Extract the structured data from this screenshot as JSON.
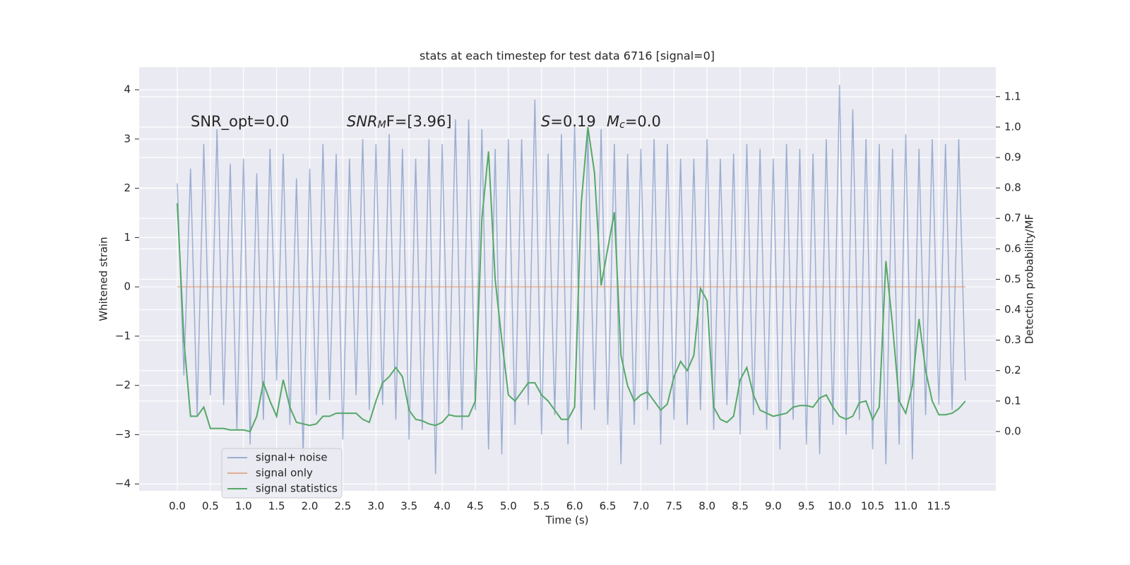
{
  "chart_data": {
    "type": "line",
    "title": "stats at each timestep for test data 6716 [signal=0]",
    "xlabel": "Time (s)",
    "ylabel": "Whitened strain",
    "y2label": "Detection probability/MF",
    "annotations": [
      [
        "SNR_opt=0.0"
      ],
      [
        "SNR",
        "M",
        "F=[3.96]"
      ],
      [
        "S",
        "",
        "=0.19"
      ],
      [
        "M",
        "c",
        "=0.0"
      ]
    ],
    "x": [
      0.0,
      0.1,
      0.2,
      0.3,
      0.4,
      0.5,
      0.6,
      0.7,
      0.8,
      0.9,
      1.0,
      1.1,
      1.2,
      1.3,
      1.4,
      1.5,
      1.6,
      1.7,
      1.8,
      1.9,
      2.0,
      2.1,
      2.2,
      2.3,
      2.4,
      2.5,
      2.6,
      2.7,
      2.8,
      2.9,
      3.0,
      3.1,
      3.2,
      3.3,
      3.4,
      3.5,
      3.6,
      3.7,
      3.8,
      3.9,
      4.0,
      4.1,
      4.2,
      4.3,
      4.4,
      4.5,
      4.6,
      4.7,
      4.8,
      4.9,
      5.0,
      5.1,
      5.2,
      5.3,
      5.4,
      5.5,
      5.6,
      5.7,
      5.8,
      5.9,
      6.0,
      6.1,
      6.2,
      6.3,
      6.4,
      6.5,
      6.6,
      6.7,
      6.8,
      6.9,
      7.0,
      7.1,
      7.2,
      7.3,
      7.4,
      7.5,
      7.6,
      7.7,
      7.8,
      7.9,
      8.0,
      8.1,
      8.2,
      8.3,
      8.4,
      8.5,
      8.6,
      8.7,
      8.8,
      8.9,
      9.0,
      9.1,
      9.2,
      9.3,
      9.4,
      9.5,
      9.6,
      9.7,
      9.8,
      9.9,
      10.0,
      10.1,
      10.2,
      10.3,
      10.4,
      10.5,
      10.6,
      10.7,
      10.8,
      10.9,
      11.0,
      11.1,
      11.2,
      11.3,
      11.4,
      11.5,
      11.6,
      11.7,
      11.8,
      11.9
    ],
    "series": [
      {
        "name": "signal+ noise",
        "color": "#4c72b0",
        "opacity": 0.5,
        "axis": "y",
        "values": [
          2.1,
          -1.8,
          2.4,
          -2.6,
          2.9,
          -2.2,
          3.2,
          -2.4,
          2.5,
          -2.9,
          2.6,
          -3.2,
          2.3,
          -2.7,
          2.8,
          -1.9,
          2.7,
          -2.8,
          2.2,
          -3.4,
          2.4,
          -2.6,
          2.9,
          -2.3,
          2.7,
          -3.1,
          2.6,
          -2.2,
          3.0,
          -2.5,
          2.9,
          -2.4,
          3.1,
          -2.7,
          2.8,
          -3.1,
          2.6,
          -2.9,
          3.0,
          -3.8,
          2.9,
          -2.6,
          3.4,
          -2.9,
          3.4,
          -2.5,
          3.2,
          -3.3,
          2.8,
          -3.4,
          3.0,
          -2.8,
          3.0,
          -2.4,
          3.8,
          -3.0,
          2.7,
          -2.6,
          3.1,
          -3.2,
          3.3,
          -2.9,
          3.1,
          -2.5,
          3.2,
          -2.8,
          2.9,
          -3.6,
          2.7,
          -2.8,
          2.8,
          -2.5,
          3.0,
          -3.2,
          2.9,
          -2.7,
          2.6,
          -2.8,
          2.6,
          -2.5,
          3.0,
          -2.9,
          2.6,
          -2.4,
          2.7,
          -3.0,
          2.9,
          -2.6,
          2.8,
          -2.9,
          2.6,
          -3.3,
          2.9,
          -2.7,
          2.8,
          -3.2,
          2.7,
          -3.4,
          3.0,
          -2.8,
          4.1,
          -3.0,
          3.6,
          -2.7,
          3.0,
          -3.3,
          2.9,
          -3.6,
          2.8,
          -3.2,
          3.1,
          -3.5,
          2.8,
          -2.6,
          3.0,
          -2.4,
          2.9,
          -2.5,
          3.0,
          -1.9
        ]
      },
      {
        "name": "signal only",
        "color": "#dd8452",
        "opacity": 0.6,
        "axis": "y",
        "values": [
          0,
          0,
          0,
          0,
          0,
          0,
          0,
          0,
          0,
          0,
          0,
          0,
          0,
          0,
          0,
          0,
          0,
          0,
          0,
          0,
          0,
          0,
          0,
          0,
          0,
          0,
          0,
          0,
          0,
          0,
          0,
          0,
          0,
          0,
          0,
          0,
          0,
          0,
          0,
          0,
          0,
          0,
          0,
          0,
          0,
          0,
          0,
          0,
          0,
          0,
          0,
          0,
          0,
          0,
          0,
          0,
          0,
          0,
          0,
          0,
          0,
          0,
          0,
          0,
          0,
          0,
          0,
          0,
          0,
          0,
          0,
          0,
          0,
          0,
          0,
          0,
          0,
          0,
          0,
          0,
          0,
          0,
          0,
          0,
          0,
          0,
          0,
          0,
          0,
          0,
          0,
          0,
          0,
          0,
          0,
          0,
          0,
          0,
          0,
          0,
          0,
          0,
          0,
          0,
          0,
          0,
          0,
          0,
          0,
          0,
          0,
          0,
          0,
          0,
          0,
          0,
          0,
          0,
          0,
          0
        ]
      },
      {
        "name": "signal statistics",
        "color": "#55a868",
        "opacity": 1,
        "axis": "y2",
        "values": [
          0.75,
          0.3,
          0.05,
          0.05,
          0.08,
          0.01,
          0.01,
          0.01,
          0.005,
          0.005,
          0.005,
          0.0,
          0.05,
          0.16,
          0.1,
          0.05,
          0.17,
          0.08,
          0.03,
          0.025,
          0.02,
          0.025,
          0.05,
          0.05,
          0.06,
          0.06,
          0.06,
          0.06,
          0.04,
          0.03,
          0.1,
          0.16,
          0.18,
          0.21,
          0.18,
          0.07,
          0.04,
          0.035,
          0.025,
          0.02,
          0.03,
          0.055,
          0.05,
          0.05,
          0.05,
          0.1,
          0.7,
          0.92,
          0.5,
          0.3,
          0.12,
          0.1,
          0.13,
          0.16,
          0.16,
          0.12,
          0.1,
          0.07,
          0.04,
          0.04,
          0.08,
          0.75,
          1.0,
          0.85,
          0.48,
          0.6,
          0.72,
          0.25,
          0.15,
          0.1,
          0.12,
          0.13,
          0.1,
          0.07,
          0.09,
          0.18,
          0.23,
          0.2,
          0.25,
          0.47,
          0.43,
          0.08,
          0.04,
          0.03,
          0.05,
          0.17,
          0.21,
          0.12,
          0.07,
          0.06,
          0.05,
          0.055,
          0.06,
          0.08,
          0.085,
          0.085,
          0.08,
          0.11,
          0.12,
          0.08,
          0.05,
          0.04,
          0.05,
          0.095,
          0.1,
          0.04,
          0.08,
          0.56,
          0.35,
          0.1,
          0.06,
          0.15,
          0.37,
          0.2,
          0.1,
          0.055,
          0.055,
          0.06,
          0.075,
          0.1
        ]
      }
    ],
    "xlim": [
      -0.576,
      12.36
    ],
    "xticks": [
      {
        "value": 0,
        "label": "0.0"
      },
      {
        "value": 0.5,
        "label": "0.5"
      },
      {
        "value": 1,
        "label": "1.0"
      },
      {
        "value": 1.5,
        "label": "1.5"
      },
      {
        "value": 2,
        "label": "2.0"
      },
      {
        "value": 2.5,
        "label": "2.5"
      },
      {
        "value": 3,
        "label": "3.0"
      },
      {
        "value": 3.5,
        "label": "3.5"
      },
      {
        "value": 4,
        "label": "4.0"
      },
      {
        "value": 4.5,
        "label": "4.5"
      },
      {
        "value": 5,
        "label": "5.0"
      },
      {
        "value": 5.5,
        "label": "5.5"
      },
      {
        "value": 6,
        "label": "6.0"
      },
      {
        "value": 6.5,
        "label": "6.5"
      },
      {
        "value": 7,
        "label": "7.0"
      },
      {
        "value": 7.5,
        "label": "7.5"
      },
      {
        "value": 8,
        "label": "8.0"
      },
      {
        "value": 8.5,
        "label": "8.5"
      },
      {
        "value": 9,
        "label": "9.0"
      },
      {
        "value": 9.5,
        "label": "9.5"
      },
      {
        "value": 10,
        "label": "10.0"
      },
      {
        "value": 10.5,
        "label": "10.5"
      },
      {
        "value": 11,
        "label": "11.0"
      },
      {
        "value": 11.5,
        "label": "11.5"
      }
    ],
    "ylim": [
      -4.14,
      4.46
    ],
    "yticks": [
      {
        "value": -4,
        "label": "−4"
      },
      {
        "value": -3,
        "label": "−3"
      },
      {
        "value": -2,
        "label": "−2"
      },
      {
        "value": -1,
        "label": "−1"
      },
      0,
      1,
      2,
      3,
      4
    ],
    "y2lim": [
      -0.195,
      1.197
    ],
    "y2ticks": [
      {
        "value": 0,
        "label": "0.0"
      },
      {
        "value": 0.1,
        "label": "0.1"
      },
      {
        "value": 0.2,
        "label": "0.2"
      },
      {
        "value": 0.3,
        "label": "0.3"
      },
      {
        "value": 0.4,
        "label": "0.4"
      },
      {
        "value": 0.5,
        "label": "0.5"
      },
      {
        "value": 0.6,
        "label": "0.6"
      },
      {
        "value": 0.7,
        "label": "0.7"
      },
      {
        "value": 0.8,
        "label": "0.8"
      },
      {
        "value": 0.9,
        "label": "0.9"
      },
      {
        "value": 1,
        "label": "1.0"
      },
      {
        "value": 1.1,
        "label": "1.1"
      }
    ],
    "grid": true,
    "legend": "lower left",
    "background": "#eaeaf2"
  }
}
